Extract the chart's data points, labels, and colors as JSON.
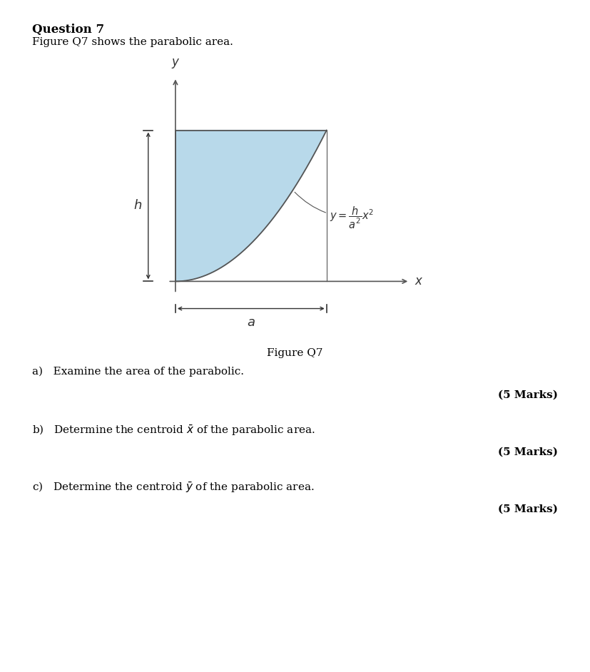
{
  "title": "Question 7",
  "subtitle": "Figure Q7 shows the parabolic area.",
  "figure_caption": "Figure Q7",
  "marks": "(5 Marks)",
  "parabola_fill_color": "#b8d9ea",
  "parabola_line_color": "#555555",
  "axis_line_color": "#555555",
  "background_color": "#ffffff",
  "arrow_color": "#333333",
  "q_a": "a)   Examine the area of the parabolic.",
  "q_b_pre": "b)   Determine the centroid ",
  "q_b_post": " of the parabolic area.",
  "q_c_pre": "c)   Determine the centroid ",
  "q_c_post": " of the parabolic area."
}
